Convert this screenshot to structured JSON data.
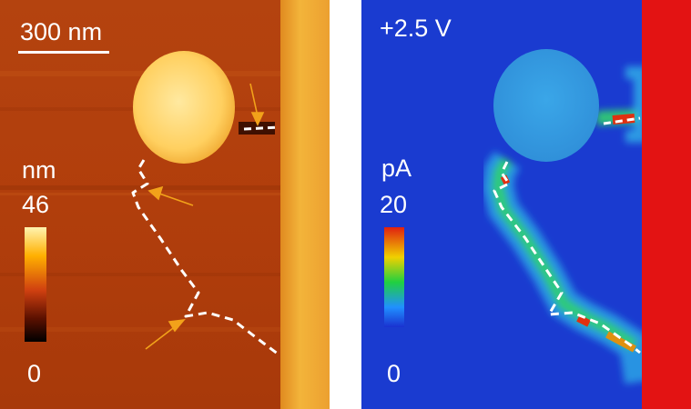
{
  "left_panel": {
    "scale_bar_label": "300 nm",
    "colorbar": {
      "unit": "nm",
      "max": "46",
      "min": "0",
      "colors": [
        "#fff3b0",
        "#ffb000",
        "#d04010",
        "#5a1000",
        "#000000"
      ]
    }
  },
  "right_panel": {
    "voltage_label": "+2.5 V",
    "colorbar": {
      "unit": "pA",
      "max": "20",
      "min": "0",
      "colors": [
        "#e02010",
        "#f0d000",
        "#20d040",
        "#2090ff",
        "#1a32d0"
      ]
    }
  },
  "colors": {
    "topography_background": "#b8400e",
    "current_background": "#1a3bd0",
    "electrode_topography": "#f0a830",
    "electrode_current": "#e31313",
    "arrow": "#f2a21a",
    "boundary_dash": "#ffffff"
  }
}
